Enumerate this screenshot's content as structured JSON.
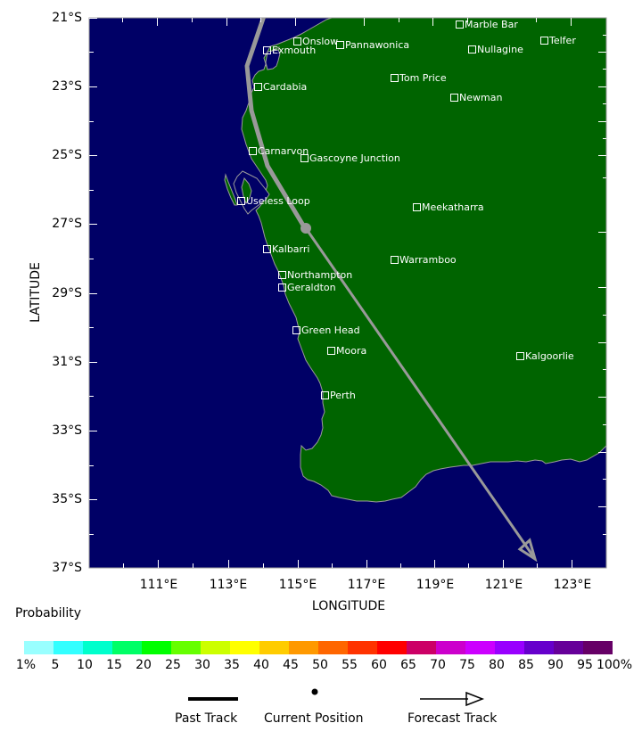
{
  "map": {
    "ocean_color": "#000066",
    "land_color": "#006400",
    "coast_color": "#9a9a9a",
    "track_color": "#999999",
    "x_axis_title": "LONGITUDE",
    "y_axis_title": "LATITUDE",
    "latitude_ticks": [
      "21°S",
      "23°S",
      "25°S",
      "27°S",
      "29°S",
      "31°S",
      "33°S",
      "35°S",
      "37°S"
    ],
    "longitude_ticks": [
      "111°E",
      "113°E",
      "115°E",
      "117°E",
      "119°E",
      "121°E",
      "123°E"
    ],
    "towns": [
      {
        "name": "Marble Bar"
      },
      {
        "name": "Onslow"
      },
      {
        "name": "Pannawonica"
      },
      {
        "name": "Telfer"
      },
      {
        "name": "Exmouth"
      },
      {
        "name": "Nullagine"
      },
      {
        "name": "Tom Price"
      },
      {
        "name": "Cardabia"
      },
      {
        "name": "Newman"
      },
      {
        "name": "Carnarvon"
      },
      {
        "name": "Gascoyne Junction"
      },
      {
        "name": "Useless Loop"
      },
      {
        "name": "Meekatharra"
      },
      {
        "name": "Kalbarri"
      },
      {
        "name": "Warramboo"
      },
      {
        "name": "Northampton"
      },
      {
        "name": "Geraldton"
      },
      {
        "name": "Green Head"
      },
      {
        "name": "Moora"
      },
      {
        "name": "Kalgoorlie"
      },
      {
        "name": "Perth"
      }
    ]
  },
  "probability_legend": {
    "title": "Probability",
    "labels": [
      "1%",
      "5",
      "10",
      "15",
      "20",
      "25",
      "30",
      "35",
      "40",
      "45",
      "50",
      "55",
      "60",
      "65",
      "70",
      "75",
      "80",
      "85",
      "90",
      "95",
      "100%"
    ],
    "colors": [
      "#99ffff",
      "#33ffff",
      "#00ffcc",
      "#00ff66",
      "#00ff00",
      "#66ff00",
      "#ccff00",
      "#ffff00",
      "#ffcc00",
      "#ff9900",
      "#ff6600",
      "#ff3300",
      "#ff0000",
      "#cc0066",
      "#cc00cc",
      "#cc00ff",
      "#9900ff",
      "#6600cc",
      "#660099",
      "#660066"
    ]
  },
  "track_legend": {
    "past_track": "Past Track",
    "current_position": "Current Position",
    "forecast_track": "Forecast Track"
  }
}
